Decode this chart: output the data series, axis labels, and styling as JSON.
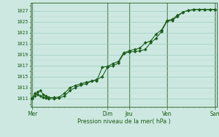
{
  "xlabel": "Pression niveau de la mer( hPa )",
  "background_color": "#cce8e0",
  "plot_bg_color": "#cce8e0",
  "line_color": "#1a5c1a",
  "marker_color": "#1a5c1a",
  "grid_major_color": "#99ccbb",
  "grid_minor_color": "#b8ddd5",
  "tick_label_color": "#1a5c1a",
  "xlabel_color": "#1a5c1a",
  "yticks": [
    1011,
    1013,
    1015,
    1017,
    1019,
    1021,
    1023,
    1025,
    1027
  ],
  "ylim": [
    1009.5,
    1028.5
  ],
  "xtick_labels": [
    "Mer",
    "",
    "Dim",
    "Jeu",
    "",
    "Ven",
    "",
    "Sam"
  ],
  "xtick_positions": [
    0,
    7,
    14,
    18,
    21,
    25,
    28,
    34
  ],
  "num_points": 35,
  "line1_x": [
    0,
    0.5,
    1,
    1.5,
    2,
    2.5,
    3,
    4,
    5,
    6,
    7,
    8,
    9,
    10,
    11,
    12,
    13,
    14,
    15,
    16,
    17,
    18,
    19,
    20,
    21,
    22,
    23,
    24,
    25,
    26,
    27,
    28,
    29,
    30,
    31,
    32,
    33,
    34
  ],
  "line1_y": [
    1011.1,
    1012.0,
    1011.8,
    1011.5,
    1011.3,
    1011.1,
    1011.0,
    1011.0,
    1011.1,
    1011.5,
    1012.5,
    1013.0,
    1013.5,
    1013.7,
    1014.2,
    1014.5,
    1015.0,
    1016.8,
    1017.0,
    1017.5,
    1019.2,
    1019.5,
    1019.6,
    1019.7,
    1020.0,
    1021.2,
    1022.0,
    1023.2,
    1025.1,
    1025.3,
    1026.0,
    1026.8,
    1027.1,
    1027.2,
    1027.3,
    1027.3,
    1027.2,
    1027.3
  ],
  "line2_x": [
    0,
    0.5,
    1,
    1.5,
    2,
    2.5,
    3,
    4,
    5,
    6,
    7,
    8,
    9,
    10,
    11,
    12,
    13,
    14,
    15,
    16,
    17,
    18,
    19,
    20,
    21,
    22,
    23,
    24,
    25,
    26,
    27,
    28,
    29,
    30,
    31,
    32,
    33,
    34
  ],
  "line2_y": [
    1011.0,
    1011.5,
    1012.2,
    1012.5,
    1011.8,
    1011.5,
    1011.2,
    1011.2,
    1011.3,
    1012.0,
    1013.0,
    1013.4,
    1013.7,
    1014.0,
    1014.2,
    1014.3,
    1016.7,
    1016.9,
    1017.4,
    1017.8,
    1019.4,
    1019.7,
    1020.0,
    1020.2,
    1021.2,
    1021.5,
    1022.8,
    1023.5,
    1025.2,
    1025.5,
    1026.2,
    1026.8,
    1027.1,
    1027.3,
    1027.3,
    1027.2,
    1027.3,
    1027.3
  ],
  "vline_color": "#336633",
  "vline_positions": [
    0,
    14,
    18,
    25,
    34
  ]
}
